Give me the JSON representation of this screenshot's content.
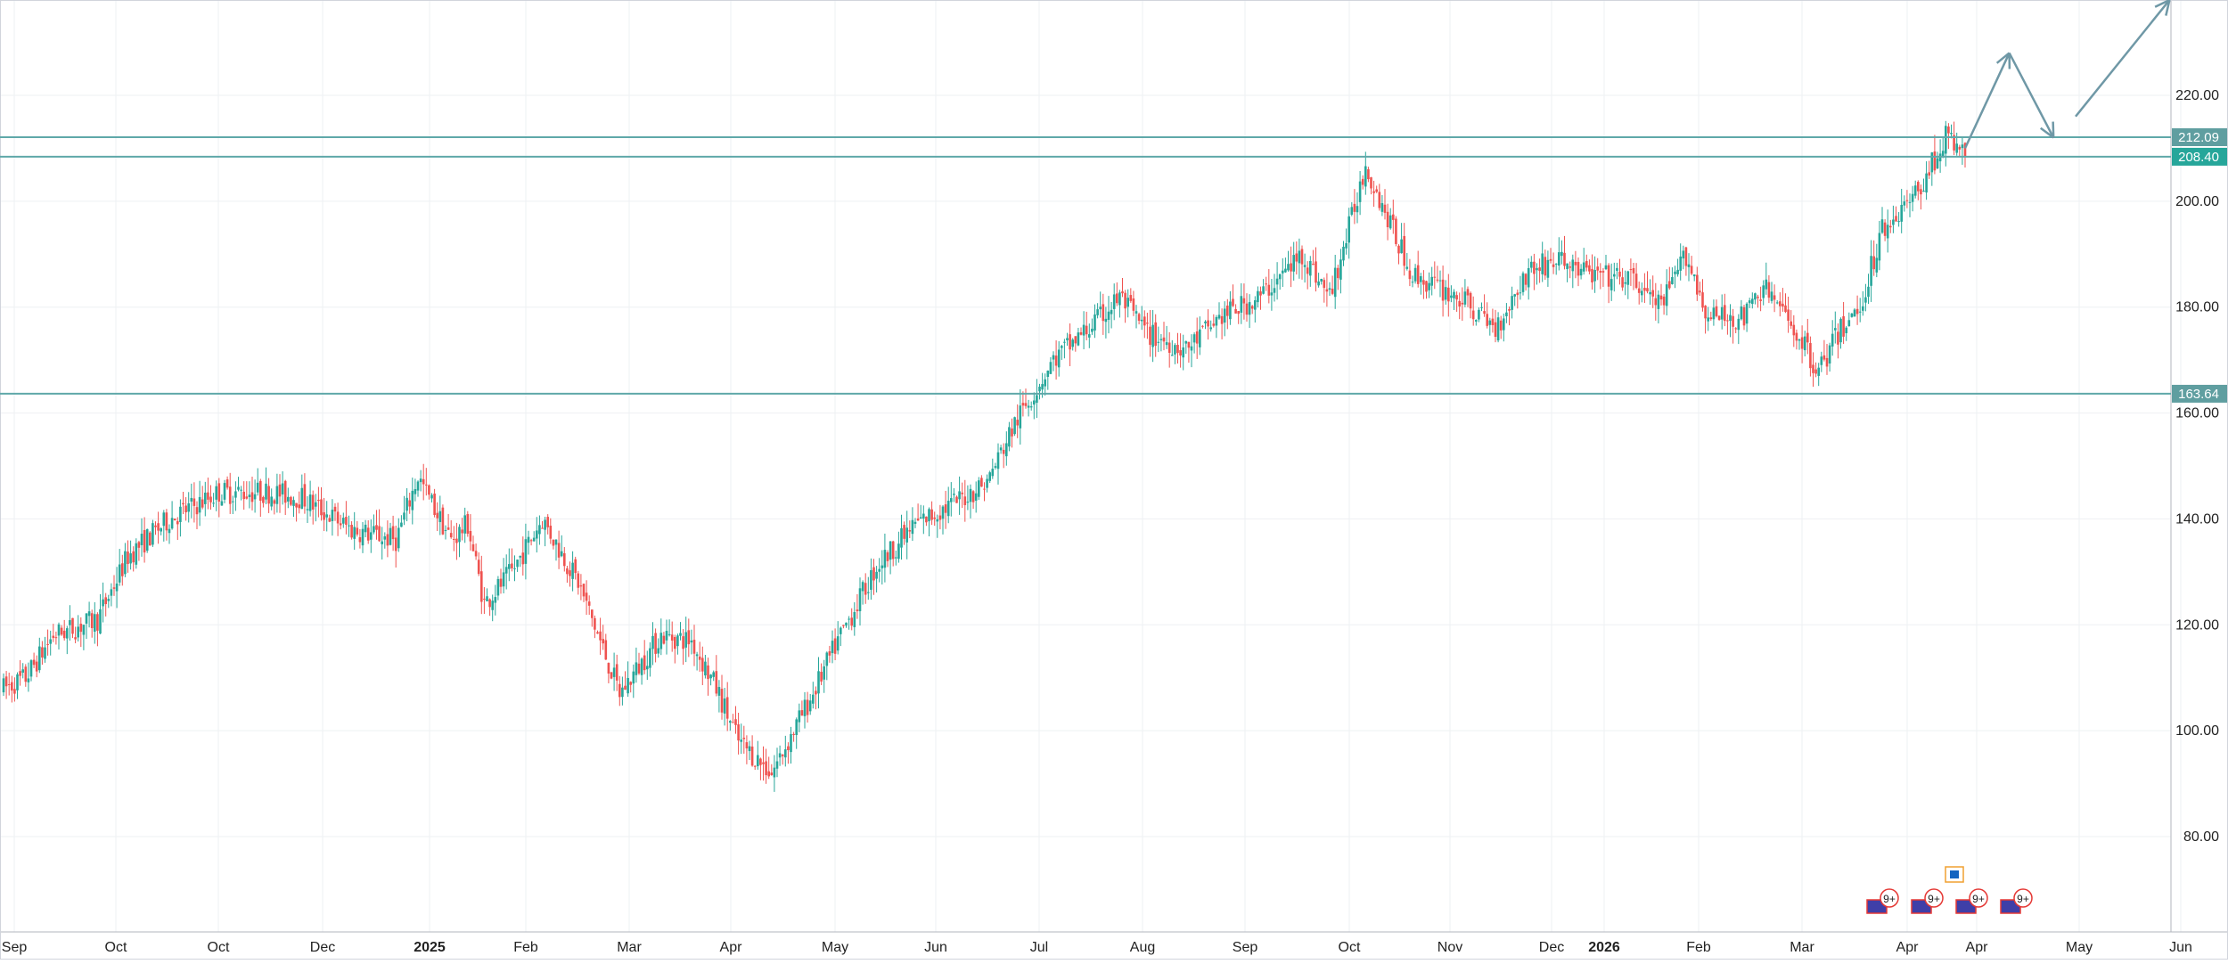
{
  "colors": {
    "up": "#26a69a",
    "down": "#ef5350",
    "hline": "#5fa8a9",
    "projection": "#6f98a6",
    "grid": "#eef0f3",
    "axis_text": "#222222",
    "axis_line": "#b2b5be",
    "label_bg": "#5f9ea0",
    "label_bg_highlight": "#26a69a"
  },
  "chart_data": {
    "type": "candlestick",
    "ylim": [
      62,
      238
    ],
    "y_ticks": [
      "80.00",
      "100.00",
      "120.00",
      "140.00",
      "160.00",
      "180.00",
      "200.00",
      "220.00"
    ],
    "x_ticks": [
      "Sep",
      "Oct",
      "Oct",
      "Dec",
      "2025",
      "Feb",
      "Mar",
      "Apr",
      "May",
      "Jun",
      "Jul",
      "Aug",
      "Sep",
      "Oct",
      "Nov",
      "Dec",
      "2026",
      "Feb",
      "Mar",
      "Apr",
      "Apr",
      "May",
      "Jun"
    ],
    "x_ticks_bold": [
      "2025",
      "2026"
    ],
    "price_trend_anchors": [
      [
        0,
        108
      ],
      [
        8,
        110
      ],
      [
        18,
        118
      ],
      [
        34,
        121
      ],
      [
        45,
        133
      ],
      [
        60,
        140
      ],
      [
        78,
        145
      ],
      [
        97,
        145
      ],
      [
        108,
        144
      ],
      [
        126,
        138
      ],
      [
        142,
        136
      ],
      [
        150,
        148
      ],
      [
        162,
        136
      ],
      [
        168,
        139
      ],
      [
        174,
        124
      ],
      [
        184,
        130
      ],
      [
        195,
        140
      ],
      [
        208,
        128
      ],
      [
        223,
        107
      ],
      [
        238,
        118
      ],
      [
        249,
        117
      ],
      [
        258,
        108
      ],
      [
        266,
        98
      ],
      [
        278,
        92
      ],
      [
        292,
        106
      ],
      [
        302,
        117
      ],
      [
        316,
        131
      ],
      [
        330,
        139
      ],
      [
        344,
        143
      ],
      [
        356,
        147
      ],
      [
        366,
        158
      ],
      [
        380,
        170
      ],
      [
        397,
        178
      ],
      [
        404,
        182
      ],
      [
        414,
        175
      ],
      [
        428,
        172
      ],
      [
        440,
        178
      ],
      [
        455,
        182
      ],
      [
        470,
        190
      ],
      [
        480,
        182
      ],
      [
        486,
        193
      ],
      [
        493,
        207
      ],
      [
        500,
        198
      ],
      [
        510,
        186
      ],
      [
        526,
        182
      ],
      [
        540,
        176
      ],
      [
        552,
        187
      ],
      [
        563,
        189
      ],
      [
        575,
        186
      ],
      [
        590,
        185
      ],
      [
        600,
        180
      ],
      [
        609,
        190
      ],
      [
        617,
        178
      ],
      [
        630,
        178
      ],
      [
        637,
        184
      ],
      [
        648,
        176
      ],
      [
        657,
        168
      ],
      [
        664,
        175
      ],
      [
        672,
        180
      ],
      [
        680,
        195
      ],
      [
        692,
        201
      ],
      [
        703,
        212
      ],
      [
        710,
        209
      ]
    ],
    "horizontal_levels": [
      {
        "price": 212.09,
        "label": "212.09"
      },
      {
        "price": 208.4,
        "label": "208.40"
      },
      {
        "price": 163.64,
        "label": "163.64"
      }
    ],
    "projection_path": [
      [
        710,
        210
      ],
      [
        726,
        228
      ],
      [
        742,
        212
      ],
      [
        750,
        216
      ],
      [
        784,
        238
      ]
    ],
    "event_badges": [
      "9+",
      "9+",
      "9+",
      "9+"
    ]
  }
}
